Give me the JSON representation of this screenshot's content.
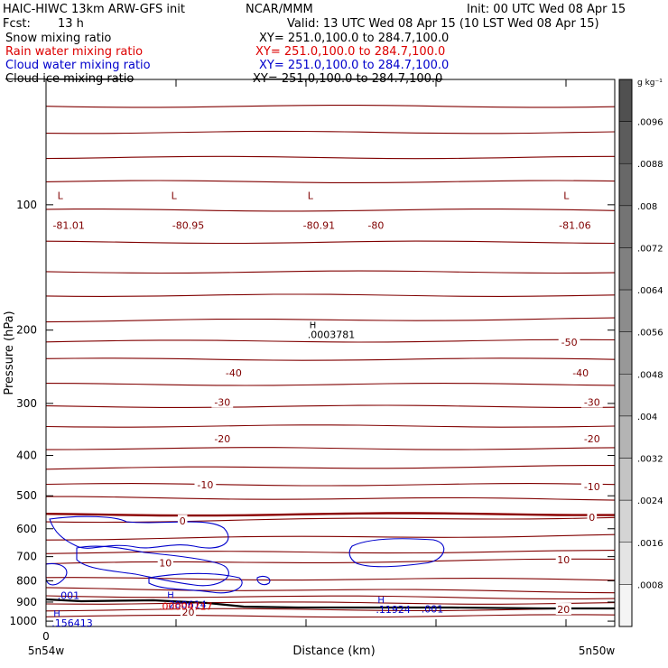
{
  "header": {
    "model": "HAIC-HIWC 13km ARW-GFS init",
    "org": "NCAR/MMM",
    "init": "Init: 00 UTC Wed 08 Apr 15",
    "fcst_label": "Fcst:",
    "fcst_value": "13 h",
    "valid": "Valid: 13 UTC Wed 08 Apr 15 (10 LST Wed 08 Apr 15)"
  },
  "fields": [
    {
      "name": "Snow mixing ratio",
      "xy": "XY= 251.0,100.0 to 284.7,100.0",
      "color": "#000000"
    },
    {
      "name": "Rain water mixing ratio",
      "xy": "XY= 251.0,100.0 to 284.7,100.0",
      "color": "#dd0000"
    },
    {
      "name": "Cloud water mixing ratio",
      "xy": "XY= 251.0,100.0 to 284.7,100.0",
      "color": "#0000cc"
    },
    {
      "name": "Cloud ice mixing ratio",
      "xy": "XY= 251.0,100.0 to 284.7,100.0",
      "color": "#000000"
    }
  ],
  "colors": {
    "temperature": "#800000",
    "zero_line": "#8b0000",
    "cloud_water": "#0000cc",
    "rain": "#dd0000",
    "terrain": "#000000"
  },
  "chart_data": {
    "type": "contour",
    "xlabel": "Distance (km)",
    "ylabel": "Pressure (hPa)",
    "x_tick_labels": [
      "0"
    ],
    "x_end_labels": [
      "5n54w",
      "5n50w"
    ],
    "yticks": [
      100,
      200,
      300,
      400,
      500,
      600,
      700,
      800,
      900,
      1000
    ],
    "ylim": [
      1030,
      50
    ],
    "y_scale": "log",
    "colorbar": {
      "unit": "g kg⁻¹",
      "levels": [
        ".0096",
        ".0088",
        ".008",
        ".0072",
        ".0064",
        ".0056",
        ".0048",
        ".004",
        ".0032",
        ".0024",
        ".0016",
        ".0008"
      ],
      "colors": [
        "#505050",
        "#5c5c5c",
        "#686868",
        "#747474",
        "#808080",
        "#8c8c8c",
        "#989898",
        "#a4a4a4",
        "#b4b4b4",
        "#c4c4c4",
        "#d4d4d4",
        "#e4e4e4",
        "#f4f4f4"
      ]
    },
    "temperature_labels": [
      {
        "text": "-81.01",
        "x": 0.04,
        "p": 112
      },
      {
        "text": "-80.95",
        "x": 0.25,
        "p": 112
      },
      {
        "text": "-80.91",
        "x": 0.48,
        "p": 112
      },
      {
        "text": "-80",
        "x": 0.58,
        "p": 112
      },
      {
        "text": "-81.06",
        "x": 0.93,
        "p": 112
      },
      {
        "text": "-50",
        "x": 0.92,
        "p": 214
      },
      {
        "text": "-40",
        "x": 0.33,
        "p": 253
      },
      {
        "text": "-40",
        "x": 0.94,
        "p": 253
      },
      {
        "text": "-30",
        "x": 0.31,
        "p": 298
      },
      {
        "text": "-30",
        "x": 0.96,
        "p": 298
      },
      {
        "text": "-20",
        "x": 0.31,
        "p": 365
      },
      {
        "text": "-20",
        "x": 0.96,
        "p": 365
      },
      {
        "text": "-10",
        "x": 0.28,
        "p": 470
      },
      {
        "text": "-10",
        "x": 0.96,
        "p": 475
      },
      {
        "text": "0",
        "x": 0.24,
        "p": 575
      },
      {
        "text": "0",
        "x": 0.96,
        "p": 563
      },
      {
        "text": "10",
        "x": 0.21,
        "p": 725
      },
      {
        "text": "10",
        "x": 0.91,
        "p": 712
      },
      {
        "text": "20",
        "x": 0.25,
        "p": 950
      },
      {
        "text": "20",
        "x": 0.91,
        "p": 937
      }
    ],
    "low_markers": [
      {
        "text": "L",
        "x": 0.02,
        "p": 95
      },
      {
        "text": "L",
        "x": 0.22,
        "p": 95
      },
      {
        "text": "L",
        "x": 0.46,
        "p": 95
      },
      {
        "text": "L",
        "x": 0.91,
        "p": 95
      }
    ],
    "high_markers": [
      {
        "text": "H",
        "value": ".0003781",
        "x": 0.46,
        "p": 198,
        "series": "snow"
      },
      {
        "text": "H",
        "value": ".280614",
        "x": 0.21,
        "p": 880,
        "series": "cloud_water"
      },
      {
        "text": "H",
        "value": ".11924",
        "x": 0.58,
        "p": 905,
        "series": "cloud_water"
      },
      {
        "text": "H",
        "value": ".156413",
        "x": 0.01,
        "p": 975,
        "series": "cloud_water"
      }
    ],
    "rain_label": {
      "value": ".00004717",
      "x": 0.2,
      "p": 920
    },
    "cloud_water_contour_labels": [
      {
        "text": ".001",
        "x": 0.02,
        "p": 867
      },
      {
        "text": ".001",
        "x": 0.66,
        "p": 935
      }
    ],
    "isotherm_p_left": [
      58,
      67,
      77,
      88,
      103,
      123,
      145,
      165,
      190,
      213,
      235,
      270,
      305,
      340,
      385,
      430,
      470,
      505,
      555,
      577,
      635,
      685,
      728,
      790,
      835,
      870,
      905,
      940,
      975
    ],
    "isotherm_p_right": [
      58,
      67,
      77,
      88,
      103,
      123,
      145,
      165,
      188,
      212,
      235,
      270,
      305,
      340,
      385,
      425,
      470,
      510,
      553,
      563,
      622,
      680,
      712,
      795,
      850,
      880,
      905,
      937,
      970
    ]
  }
}
